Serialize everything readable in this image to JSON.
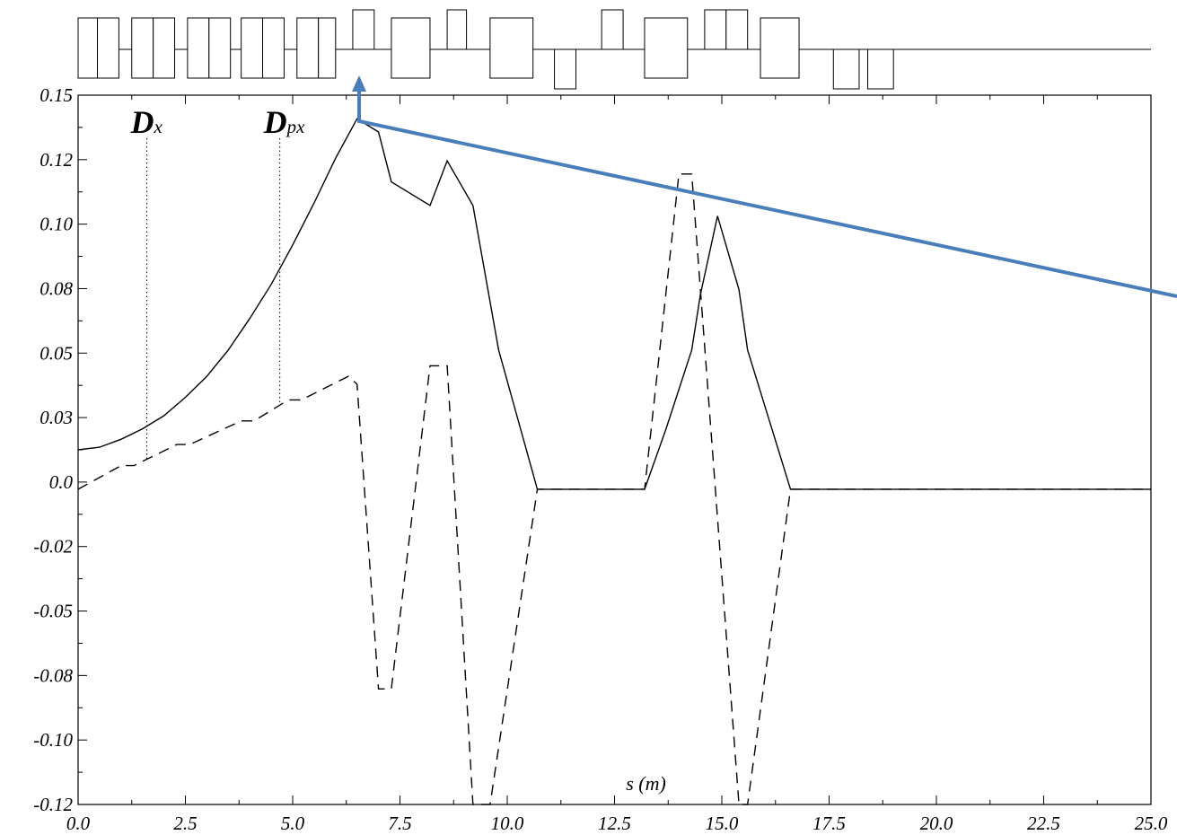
{
  "chart_data": {
    "type": "line",
    "xlabel": "s (m)",
    "ylabel": "",
    "xlim": [
      0,
      25
    ],
    "ylim": [
      -0.12,
      0.15
    ],
    "x_ticks": [
      "0.0",
      "2.5",
      "5.0",
      "7.5",
      "10.0",
      "12.5",
      "15.0",
      "17.5",
      "20.0",
      "22.5",
      "25.0"
    ],
    "y_ticks": [
      "0.15",
      "0.12",
      "0.10",
      "0.08",
      "0.05",
      "0.03",
      "0.0",
      "-0.02",
      "-0.05",
      "-0.08",
      "-0.10",
      "-0.12"
    ],
    "legend": [
      {
        "main": "D",
        "sub": "x",
        "style": "solid",
        "marker_s": 1.6
      },
      {
        "main": "D",
        "sub": "px",
        "style": "dashed",
        "marker_s": 4.7
      }
    ],
    "series": [
      {
        "name": "Dx",
        "style": "solid",
        "x": [
          0.0,
          0.5,
          1.0,
          1.5,
          2.0,
          2.5,
          3.0,
          3.5,
          4.0,
          4.5,
          5.0,
          5.5,
          6.0,
          6.5,
          7.0,
          7.3,
          8.2,
          8.6,
          9.2,
          9.8,
          10.7,
          13.2,
          13.7,
          14.3,
          14.5,
          14.9,
          15.4,
          15.6,
          16.6,
          25.0
        ],
        "y": [
          0.015,
          0.016,
          0.019,
          0.023,
          0.028,
          0.035,
          0.043,
          0.053,
          0.065,
          0.078,
          0.093,
          0.109,
          0.126,
          0.141,
          0.136,
          0.117,
          0.108,
          0.125,
          0.108,
          0.053,
          0.0,
          0.0,
          0.023,
          0.053,
          0.074,
          0.104,
          0.076,
          0.053,
          0.0,
          0.0
        ]
      },
      {
        "name": "Dpx",
        "style": "dashed",
        "x": [
          0.0,
          1.0,
          1.3,
          2.3,
          2.6,
          3.8,
          4.1,
          4.9,
          5.2,
          6.3,
          6.5,
          7.0,
          7.3,
          8.2,
          8.6,
          9.2,
          9.6,
          10.7,
          13.2,
          14.0,
          14.3,
          15.4,
          15.6,
          16.6,
          25.0
        ],
        "y": [
          0.0,
          0.009,
          0.009,
          0.017,
          0.017,
          0.026,
          0.026,
          0.034,
          0.034,
          0.043,
          0.04,
          -0.076,
          -0.076,
          0.047,
          0.047,
          -0.12,
          -0.12,
          0.0,
          0.0,
          0.12,
          0.12,
          -0.12,
          -0.12,
          0.0,
          0.0
        ]
      }
    ],
    "lattice": {
      "x_range": [
        0,
        25
      ],
      "elements": [
        {
          "type": "dipole",
          "s0": 0.0,
          "s1": 0.45
        },
        {
          "type": "dipole",
          "s0": 0.45,
          "s1": 0.95
        },
        {
          "type": "dipole",
          "s0": 1.25,
          "s1": 1.75
        },
        {
          "type": "dipole",
          "s0": 1.75,
          "s1": 2.25
        },
        {
          "type": "dipole",
          "s0": 2.55,
          "s1": 3.05
        },
        {
          "type": "dipole",
          "s0": 3.05,
          "s1": 3.55
        },
        {
          "type": "dipole",
          "s0": 3.8,
          "s1": 4.3
        },
        {
          "type": "dipole",
          "s0": 4.3,
          "s1": 4.8
        },
        {
          "type": "dipole",
          "s0": 5.1,
          "s1": 5.6
        },
        {
          "type": "dipole",
          "s0": 5.6,
          "s1": 6.0
        },
        {
          "type": "quad_focus",
          "s0": 6.4,
          "s1": 6.9
        },
        {
          "type": "dipole",
          "s0": 7.3,
          "s1": 8.2
        },
        {
          "type": "quad_focus",
          "s0": 8.6,
          "s1": 9.05
        },
        {
          "type": "dipole",
          "s0": 9.6,
          "s1": 10.6
        },
        {
          "type": "quad_defocus",
          "s0": 11.1,
          "s1": 11.6
        },
        {
          "type": "quad_focus",
          "s0": 12.2,
          "s1": 12.7
        },
        {
          "type": "dipole",
          "s0": 13.2,
          "s1": 14.2
        },
        {
          "type": "quad_focus",
          "s0": 14.6,
          "s1": 15.1
        },
        {
          "type": "quad_focus",
          "s0": 15.1,
          "s1": 15.6
        },
        {
          "type": "dipole",
          "s0": 15.9,
          "s1": 16.8
        },
        {
          "type": "quad_defocus",
          "s0": 17.6,
          "s1": 18.2
        },
        {
          "type": "quad_defocus",
          "s0": 18.4,
          "s1": 19.0
        }
      ]
    },
    "arrow_color": "#4A7EBB"
  }
}
